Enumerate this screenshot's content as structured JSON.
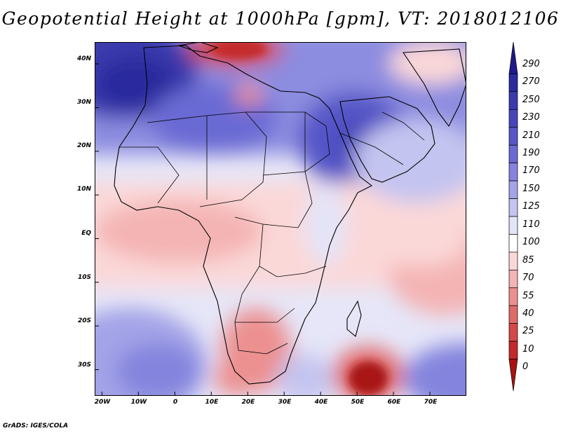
{
  "title": "Geopotential Height at 1000hPa [gpm], VT: 2018012106",
  "credit": "GrADS: IGES/COLA",
  "map": {
    "region": "Africa and Middle East",
    "lat_range": [
      -36,
      45
    ],
    "lon_range": [
      -22,
      80
    ],
    "lat_ticks": [
      {
        "value": 40,
        "label": "40N"
      },
      {
        "value": 30,
        "label": "30N"
      },
      {
        "value": 20,
        "label": "20N"
      },
      {
        "value": 10,
        "label": "10N"
      },
      {
        "value": 0,
        "label": "EQ"
      },
      {
        "value": -10,
        "label": "10S"
      },
      {
        "value": -20,
        "label": "20S"
      },
      {
        "value": -30,
        "label": "30S"
      }
    ],
    "lon_ticks": [
      {
        "value": -20,
        "label": "20W"
      },
      {
        "value": -10,
        "label": "10W"
      },
      {
        "value": 0,
        "label": "0"
      },
      {
        "value": 10,
        "label": "10E"
      },
      {
        "value": 20,
        "label": "20E"
      },
      {
        "value": 30,
        "label": "30E"
      },
      {
        "value": 40,
        "label": "40E"
      },
      {
        "value": 50,
        "label": "50E"
      },
      {
        "value": 60,
        "label": "60E"
      },
      {
        "value": 70,
        "label": "70E"
      }
    ]
  },
  "colorbar": {
    "labels": [
      "290",
      "270",
      "250",
      "230",
      "210",
      "190",
      "170",
      "150",
      "125",
      "110",
      "100",
      "85",
      "70",
      "55",
      "40",
      "25",
      "10",
      "0"
    ],
    "colors": [
      "#1e1a8c",
      "#2a2a9e",
      "#3a3aae",
      "#4646bc",
      "#5656c8",
      "#6a6ad4",
      "#8484de",
      "#a3a3e8",
      "#c4c4f0",
      "#e4e4f8",
      "#ffffff",
      "#fbd8d8",
      "#f4b4b4",
      "#ec9090",
      "#e06a6a",
      "#d44848",
      "#c42a2a",
      "#a81212"
    ]
  }
}
